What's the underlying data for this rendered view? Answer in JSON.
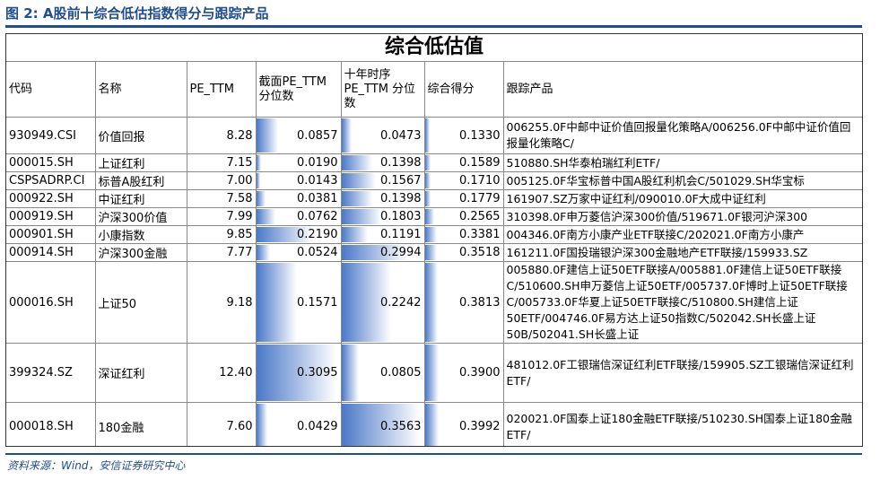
{
  "figure_title": "图 2:  A股前十综合低估指数得分与跟踪产品",
  "table_title": "综合低估值",
  "columns": [
    "代码",
    "名称",
    "PE_TTM",
    "截面PE_TTM分位数",
    "十年时序PE_TTM 分位数",
    "综合得分",
    "跟踪产品"
  ],
  "rows": [
    {
      "code": "930949.CSI",
      "name": "价值回报",
      "pe": "8.28",
      "cs": "0.0857",
      "ts": "0.0473",
      "score": "0.1330",
      "products": "006255.0F中邮中证价值回报量化策略A/006256.0F中邮中证价值回报量化策略C/"
    },
    {
      "code": "000015.SH",
      "name": "上证红利",
      "pe": "7.15",
      "cs": "0.0190",
      "ts": "0.1398",
      "score": "0.1589",
      "products": "510880.SH华泰柏瑞红利ETF/"
    },
    {
      "code": "CSPSADRP.CI",
      "name": "标普A股红利",
      "pe": "7.00",
      "cs": "0.0143",
      "ts": "0.1567",
      "score": "0.1710",
      "products": "005125.0F华宝标普中国A股红利机会C/501029.SH华宝标"
    },
    {
      "code": "000922.SH",
      "name": "中证红利",
      "pe": "7.58",
      "cs": "0.0381",
      "ts": "0.1398",
      "score": "0.1779",
      "products": "161907.SZ万家中证红利/090010.0F大成中证红利"
    },
    {
      "code": "000919.SH",
      "name": "沪深300价值",
      "pe": "7.99",
      "cs": "0.0762",
      "ts": "0.1803",
      "score": "0.2565",
      "products": "310398.0F申万菱信沪深300价值/519671.0F银河沪深300"
    },
    {
      "code": "000901.SH",
      "name": "小康指数",
      "pe": "9.85",
      "cs": "0.2190",
      "ts": "0.1191",
      "score": "0.3381",
      "products": "004346.0F南方小康产业ETF联接C/202021.0F南方小康产"
    },
    {
      "code": "000914.SH",
      "name": "沪深300金融",
      "pe": "7.77",
      "cs": "0.0524",
      "ts": "0.2994",
      "score": "0.3518",
      "products": "161211.0F国投瑞银沪深300金融地产ETF联接/159933.SZ"
    },
    {
      "code": "000016.SH",
      "name": "上证50",
      "pe": "9.18",
      "cs": "0.1571",
      "ts": "0.2242",
      "score": "0.3813",
      "products": "005880.0F建信上证50ETF联接A/005881.0F建信上证50ETF联接C/510600.SH申万菱信上证50ETF/005737.0F博时上证50ETF联接C/005733.0F华夏上证50ETF联接C/510800.SH建信上证50ETF/004746.0F易方达上证50指数C/502042.SH长盛上证50B/502041.SH长盛上证"
    },
    {
      "code": "399324.SZ",
      "name": "深证红利",
      "pe": "12.40",
      "cs": "0.3095",
      "ts": "0.0805",
      "score": "0.3900",
      "products": "481012.0F工银瑞信深证红利ETF联接/159905.SZ工银瑞信深证红利ETF/"
    },
    {
      "code": "000018.SH",
      "name": "180金融",
      "pe": "7.60",
      "cs": "0.0429",
      "ts": "0.3563",
      "score": "0.3992",
      "products": "020021.0F国泰上证180金融ETF联接/510230.SH国泰上证180金融ETF/"
    }
  ],
  "source": "资料来源：Wind，安信证券研究中心",
  "colors": {
    "brand": "#1f4e8c",
    "bar": "#4a78c8"
  }
}
